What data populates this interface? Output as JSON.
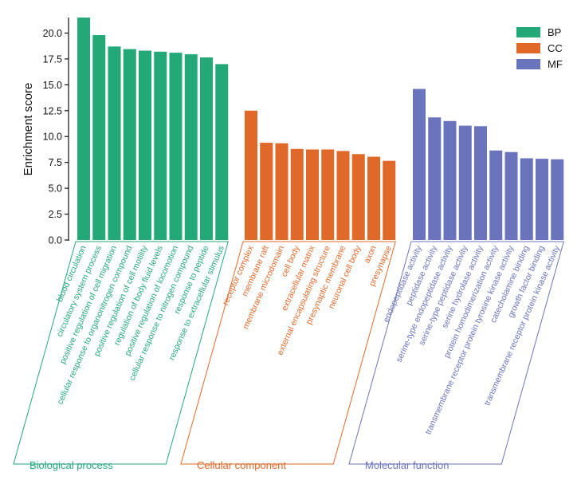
{
  "chart_data": {
    "type": "bar",
    "ylabel": "Enrichment score",
    "ylim": [
      0,
      21.5
    ],
    "yticks": [
      0.0,
      2.5,
      5.0,
      7.5,
      10.0,
      12.5,
      15.0,
      17.5,
      20.0
    ],
    "ytick_labels": [
      "0.0",
      "2.5",
      "5.0",
      "7.5",
      "10.0",
      "12.5",
      "15.0",
      "17.5",
      "20.0"
    ],
    "legend": [
      {
        "name": "BP",
        "color": "#23a877"
      },
      {
        "name": "CC",
        "color": "#e0692a"
      },
      {
        "name": "MF",
        "color": "#6a74bd"
      }
    ],
    "groups": [
      {
        "key": "BP",
        "name": "Biological process",
        "color": "#23a877",
        "categories": [
          "blood circulation",
          "circulatory system process",
          "positive regulation of cell migration",
          "cellular response to organonitrogen compound",
          "positive regulation of cell motility",
          "regulation of body fluid levels",
          "positive regulation of locomotion",
          "cellular response to nitrogen compound",
          "response to peptide",
          "response to extracellular stimulus"
        ],
        "values": [
          21.5,
          19.8,
          18.7,
          18.45,
          18.3,
          18.2,
          18.1,
          17.95,
          17.65,
          17.0
        ]
      },
      {
        "key": "CC",
        "name": "Cellular component",
        "color": "#e0692a",
        "categories": [
          "receptor complex",
          "membrane raft",
          "membrane microdomain",
          "cell body",
          "extracellular matrix",
          "external encapsulating structure",
          "presynaptic membrane",
          "neuronal cell body",
          "axon",
          "presynapse"
        ],
        "values": [
          12.5,
          9.4,
          9.35,
          8.8,
          8.75,
          8.75,
          8.6,
          8.3,
          8.05,
          7.65
        ]
      },
      {
        "key": "MF",
        "name": "Molecular function",
        "color": "#6a74bd",
        "categories": [
          "endopeptidase activity",
          "peptidase activity",
          "serine-type endopeptidase activity",
          "serine-type peptidase activity",
          "serine hydrolase activity",
          "protein homodimerization activity",
          "transmembrane receptor protein tyrosine kinase activity",
          "catecholamine binding",
          "growth factor binding",
          "transmembrane receptor protein kinase activity"
        ],
        "values": [
          14.6,
          11.85,
          11.5,
          11.05,
          11.0,
          8.65,
          8.5,
          7.9,
          7.85,
          7.8
        ]
      }
    ]
  }
}
